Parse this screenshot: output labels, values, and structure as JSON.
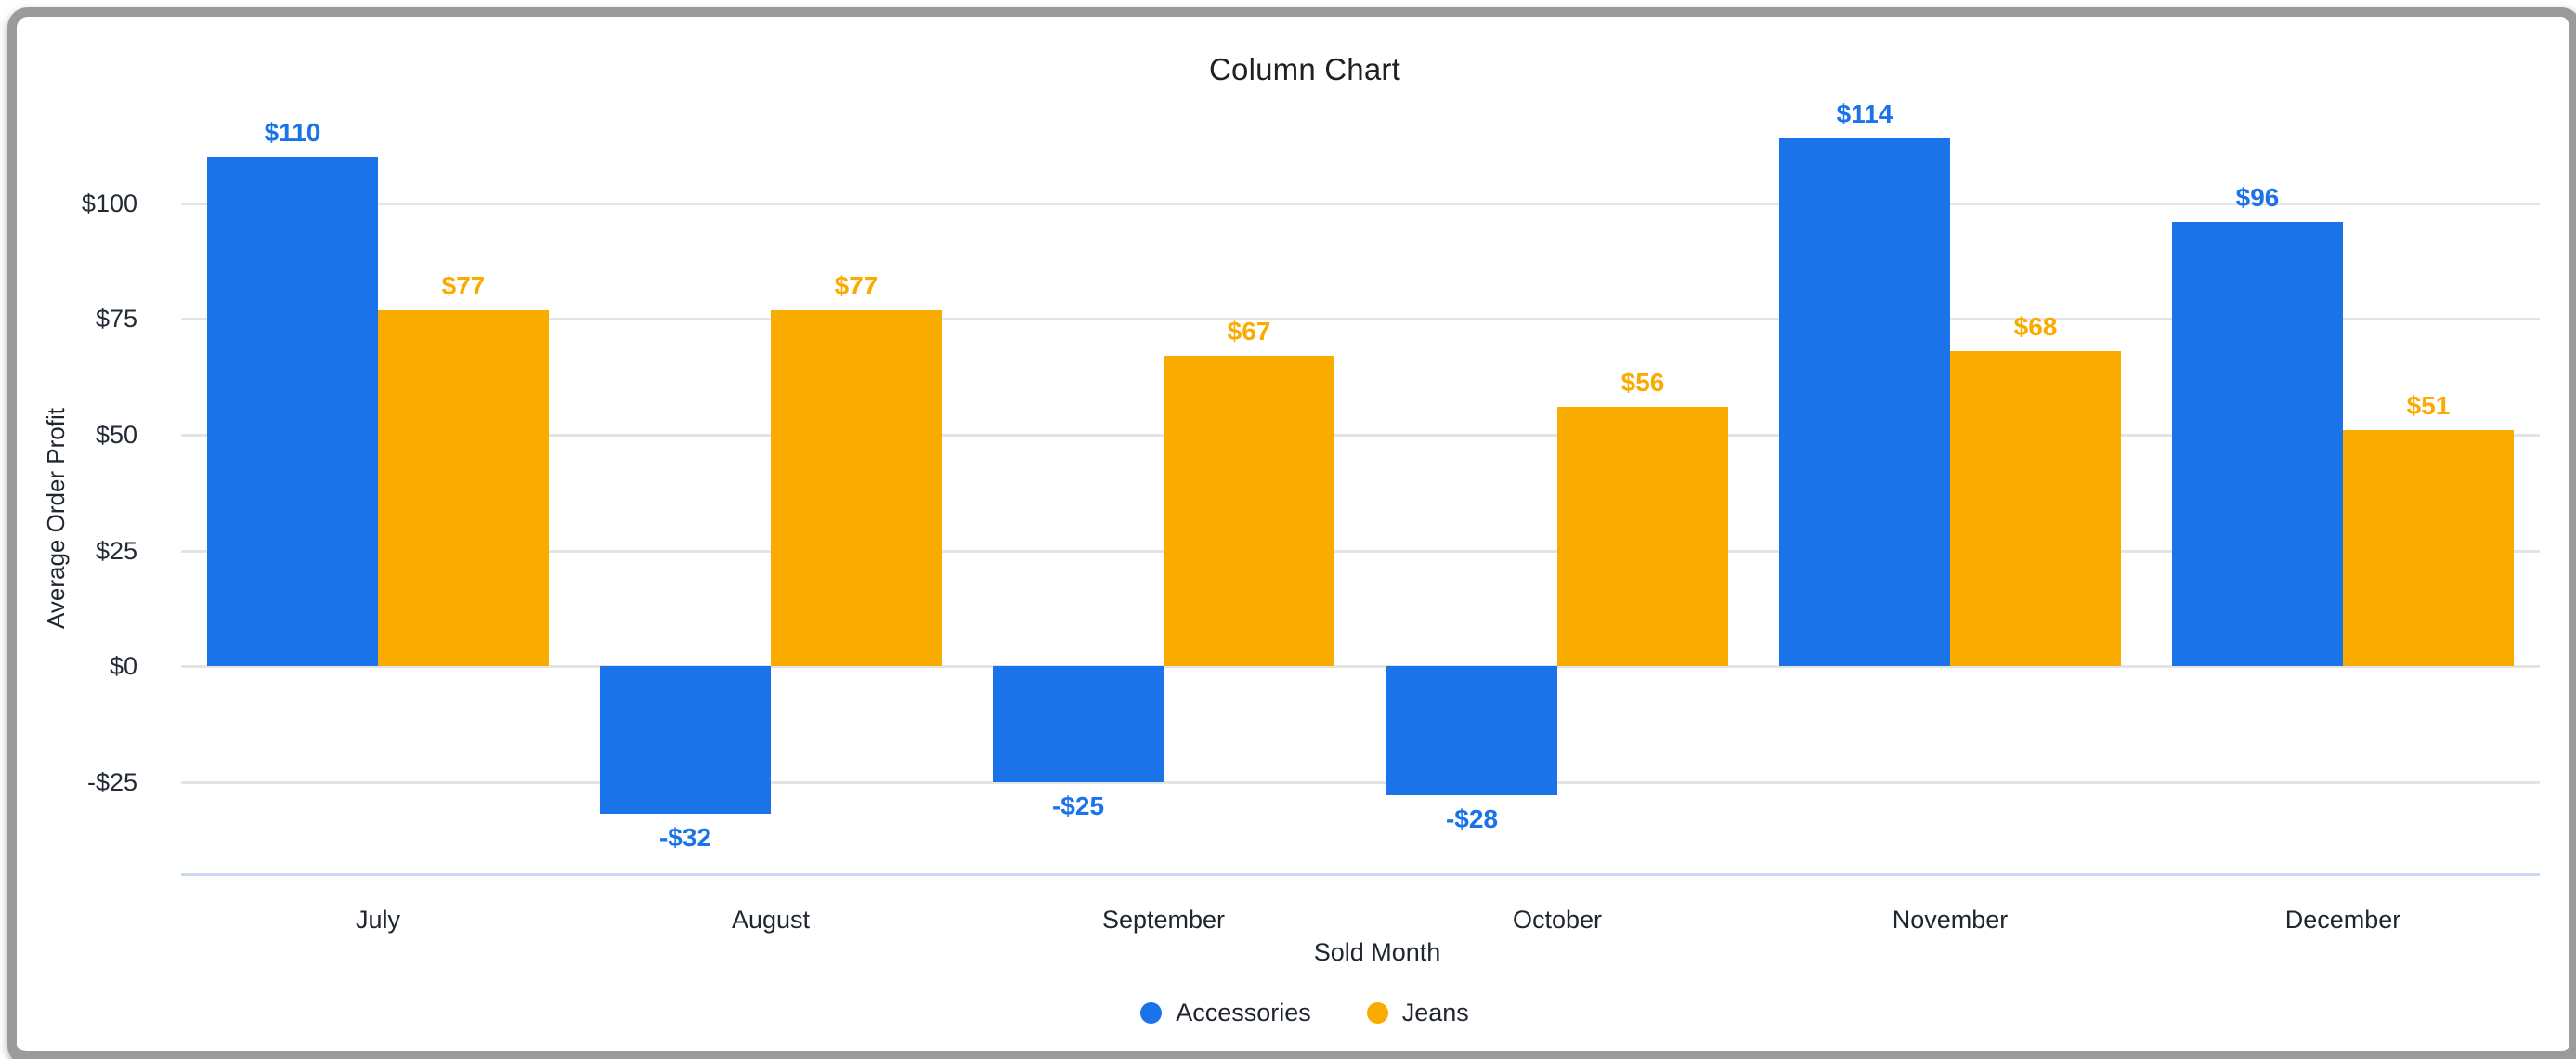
{
  "chart": {
    "title": "Column Chart",
    "y_axis": {
      "title": "Average Order Profit",
      "ticks": [
        {
          "value": 100,
          "label": "$100"
        },
        {
          "value": 75,
          "label": "$75"
        },
        {
          "value": 50,
          "label": "$50"
        },
        {
          "value": 25,
          "label": "$25"
        },
        {
          "value": 0,
          "label": "$0"
        },
        {
          "value": -25,
          "label": "-$25"
        }
      ]
    },
    "x_axis": {
      "title": "Sold Month"
    }
  },
  "chart_data": {
    "type": "bar",
    "title": "Column Chart",
    "categories": [
      "July",
      "August",
      "September",
      "October",
      "November",
      "December"
    ],
    "series": [
      {
        "name": "Accessories",
        "color": "#1a73e8",
        "values": [
          110,
          -32,
          -25,
          -28,
          114,
          96
        ],
        "labels": [
          "$110",
          "-$32",
          "-$25",
          "-$28",
          "$114",
          "$96"
        ]
      },
      {
        "name": "Jeans",
        "color": "#f9ab00",
        "values": [
          77,
          77,
          67,
          56,
          68,
          51
        ],
        "labels": [
          "$77",
          "$77",
          "$67",
          "$56",
          "$68",
          "$51"
        ]
      }
    ],
    "xlabel": "Sold Month",
    "ylabel": "Average Order Profit",
    "ylim": [
      -45,
      115
    ],
    "yticks": [
      100,
      75,
      50,
      25,
      0,
      -25
    ],
    "grid": true,
    "legend_position": "bottom",
    "gridline_color": "#e4e4e4",
    "baseline_color": "#ccd8ee",
    "label_colors": {
      "Accessories": "#1a73e8",
      "Jeans": "#f9ab00"
    }
  }
}
